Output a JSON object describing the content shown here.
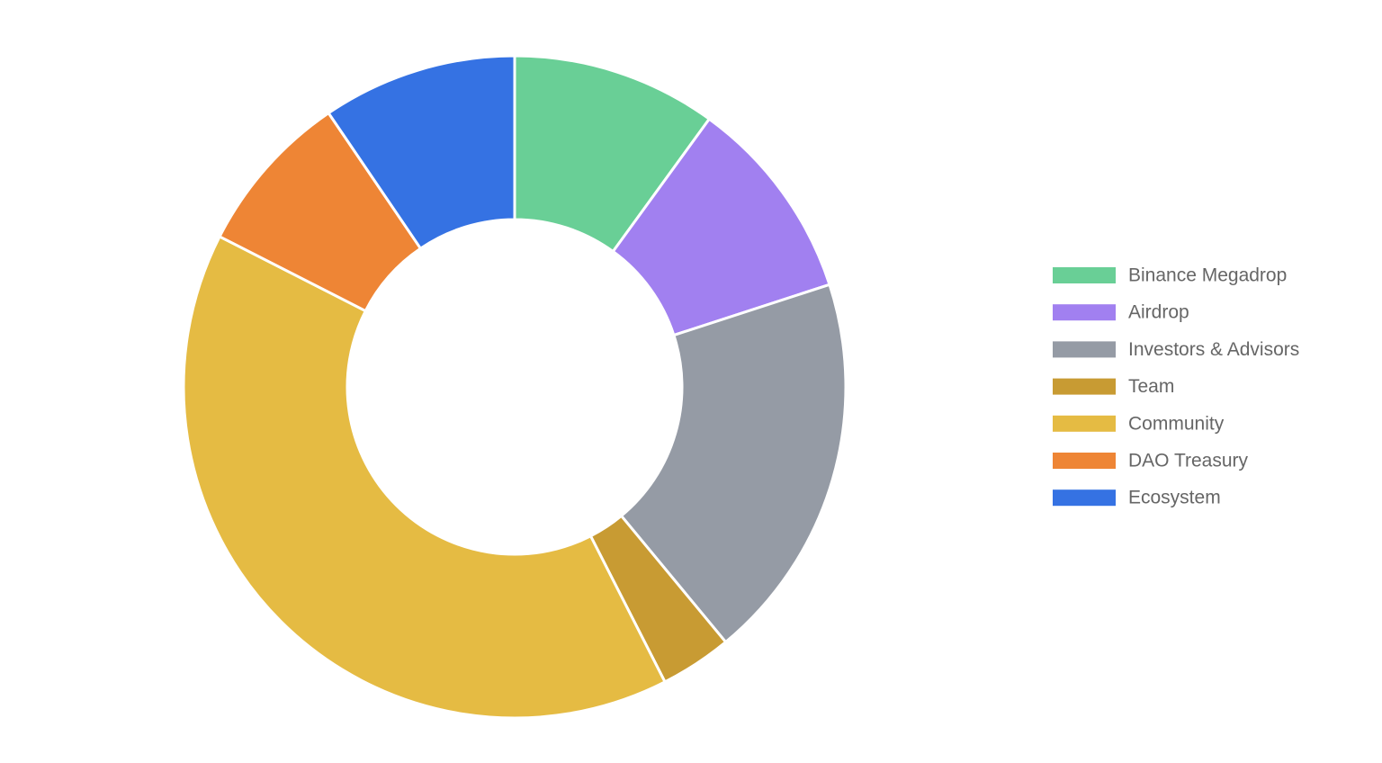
{
  "chart_data": {
    "type": "doughnut",
    "categories": [
      "Binance Megadrop",
      "Airdrop",
      "Investors & Advisors",
      "Team",
      "Community",
      "DAO Treasury",
      "Ecosystem"
    ],
    "values": [
      10,
      10,
      19,
      3.5,
      40,
      8,
      9.5
    ],
    "colors": [
      "#69cf96",
      "#a180f0",
      "#959ba5",
      "#c89b33",
      "#e5bb43",
      "#ee8535",
      "#3572e3"
    ],
    "legend": "right"
  }
}
